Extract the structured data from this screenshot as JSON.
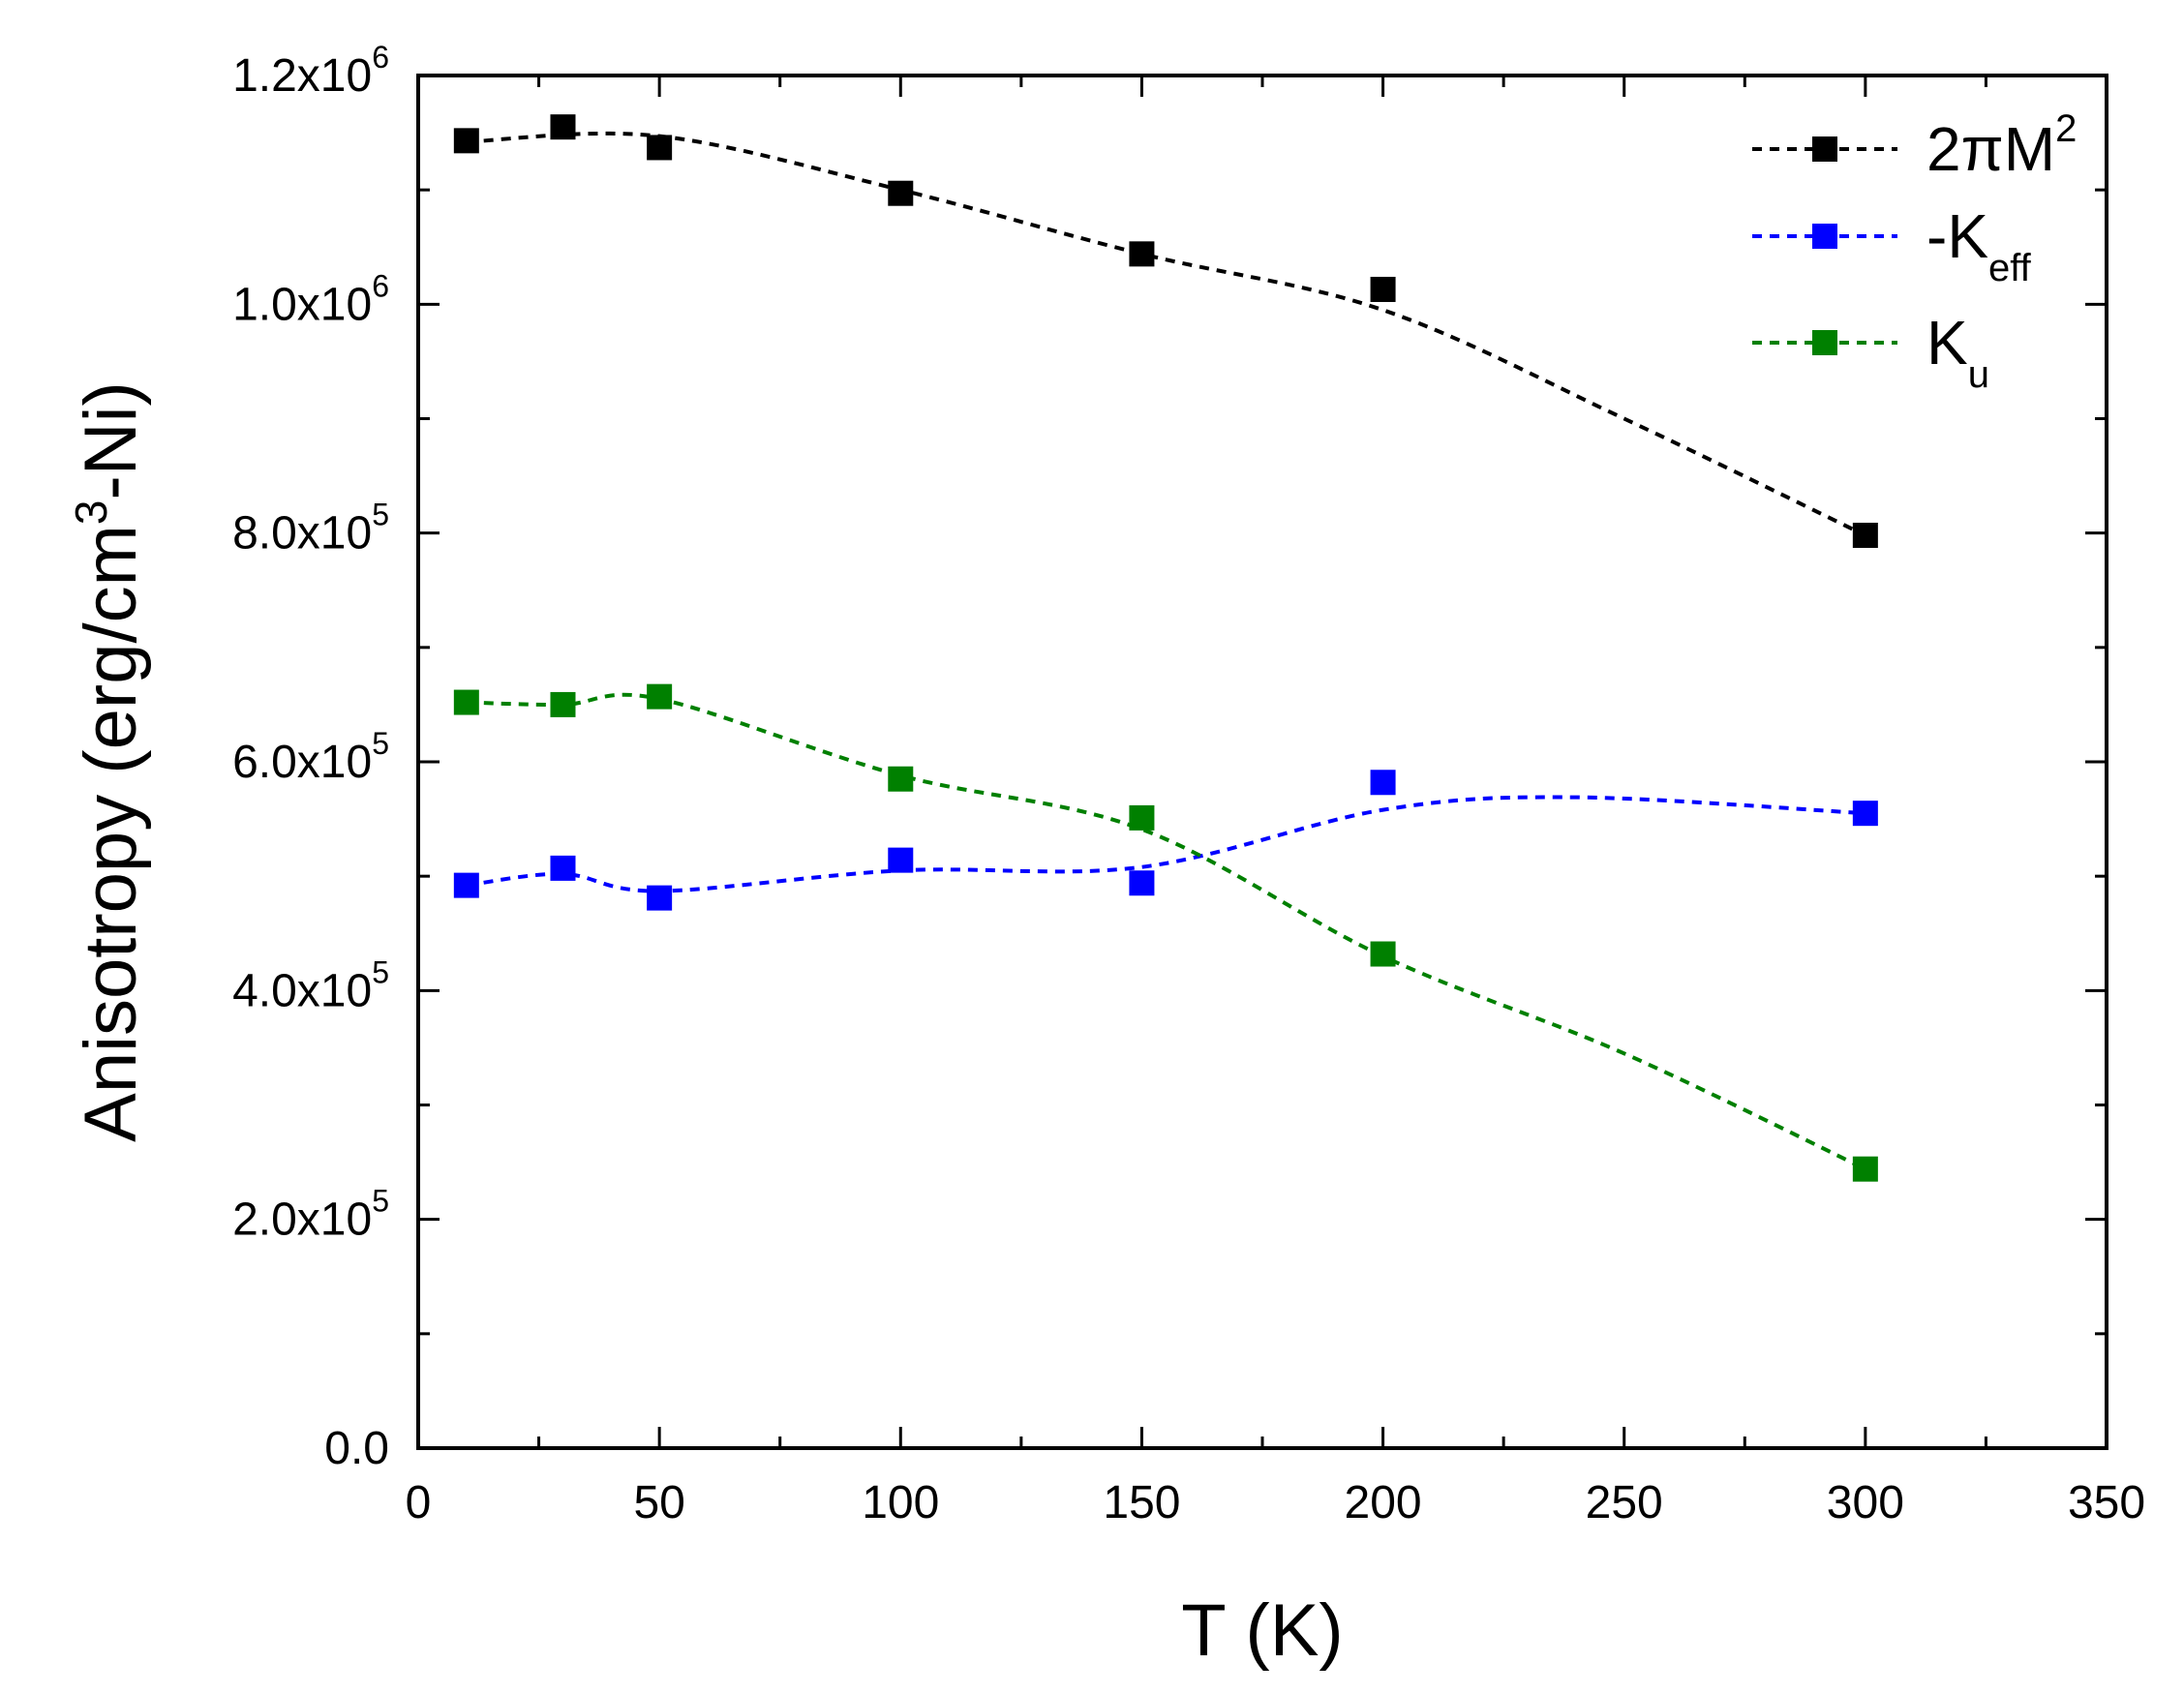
{
  "chart_data": {
    "type": "scatter",
    "xlabel": "T (K)",
    "ylabel": {
      "main": "Anisotropy (erg/cm",
      "sup": "3",
      "tail": "-Ni)"
    },
    "xlim": [
      0,
      350
    ],
    "ylim": [
      0,
      1200000
    ],
    "x_ticks": [
      0,
      50,
      100,
      150,
      200,
      250,
      300,
      350
    ],
    "x_tick_labels": [
      "0",
      "50",
      "100",
      "150",
      "200",
      "250",
      "300",
      "350"
    ],
    "y_ticks": [
      0,
      200000,
      400000,
      600000,
      800000,
      1000000,
      1200000
    ],
    "y_tick_labels": [
      {
        "mantissa": "0.0",
        "exp": ""
      },
      {
        "mantissa": "2.0x10",
        "exp": "5"
      },
      {
        "mantissa": "4.0x10",
        "exp": "5"
      },
      {
        "mantissa": "6.0x10",
        "exp": "5"
      },
      {
        "mantissa": "8.0x10",
        "exp": "5"
      },
      {
        "mantissa": "1.0x10",
        "exp": "6"
      },
      {
        "mantissa": "1.2x10",
        "exp": "6"
      }
    ],
    "grid": false,
    "legend_position": "top-right",
    "series": [
      {
        "name": "2πM",
        "legend_main": "2πM",
        "legend_sup": "2",
        "legend_sub": "",
        "color": "#000000",
        "x": [
          10,
          30,
          50,
          100,
          150,
          200,
          300
        ],
        "y": [
          1143000,
          1155000,
          1137000,
          1097000,
          1044000,
          1013000,
          798000
        ],
        "fit_x": [
          10,
          50,
          100,
          150,
          200,
          250,
          300
        ],
        "fit_y": [
          1142000,
          1147000,
          1100000,
          1044000,
          995000,
          900000,
          798000
        ]
      },
      {
        "name": "-K",
        "legend_main": "-K",
        "legend_sup": "",
        "legend_sub": "eff",
        "color": "#0000ff",
        "x": [
          10,
          30,
          50,
          100,
          150,
          200,
          300
        ],
        "y": [
          492000,
          507000,
          481000,
          514000,
          494000,
          582000,
          555000
        ],
        "fit_x": [
          10,
          30,
          50,
          100,
          150,
          200,
          240,
          300
        ],
        "fit_y": [
          492000,
          502000,
          487000,
          505000,
          508000,
          558000,
          569000,
          555000
        ]
      },
      {
        "name": "K",
        "legend_main": "K",
        "legend_sup": "",
        "legend_sub": "u",
        "color": "#008000",
        "x": [
          10,
          30,
          50,
          100,
          150,
          200,
          300
        ],
        "y": [
          652000,
          650000,
          657000,
          585000,
          551000,
          432000,
          244000
        ],
        "fit_x": [
          10,
          30,
          50,
          100,
          150,
          200,
          250,
          300
        ],
        "fit_y": [
          652000,
          650000,
          655000,
          588000,
          541000,
          430000,
          345000,
          244000
        ]
      }
    ]
  }
}
